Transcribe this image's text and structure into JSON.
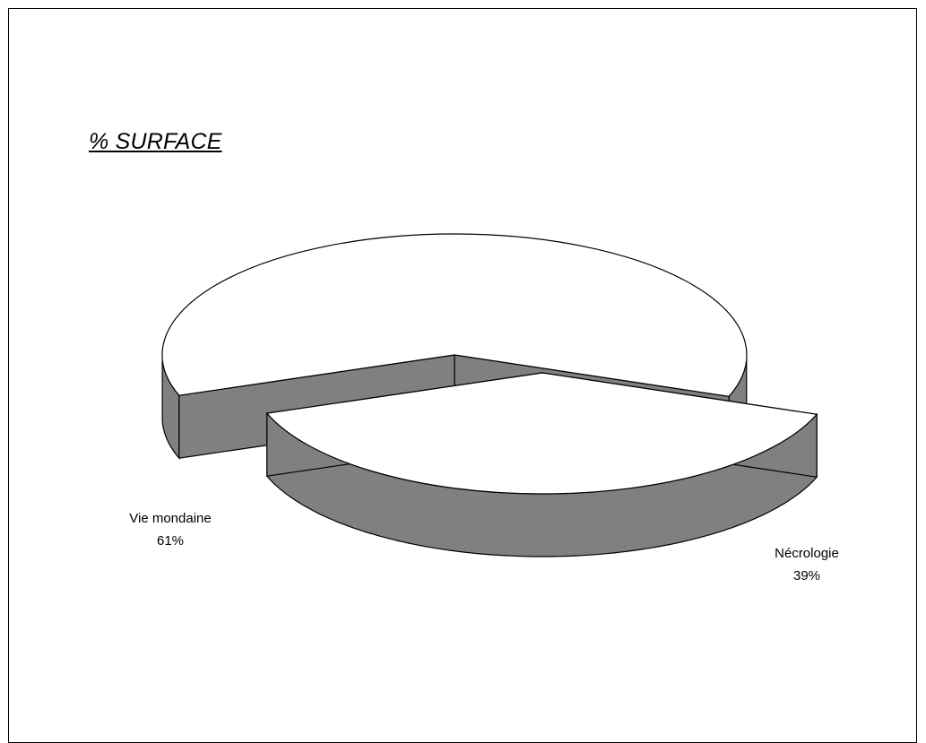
{
  "chart_data": {
    "type": "pie",
    "title": "% SURFACE",
    "style": "3d-exploded",
    "slices": [
      {
        "label": "Vie mondaine",
        "value": 61,
        "value_label": "61%"
      },
      {
        "label": "Nécrologie",
        "value": 39,
        "value_label": "39%"
      }
    ],
    "colors": {
      "top": "#ffffff",
      "side": "#808080",
      "outline": "#000000"
    }
  }
}
